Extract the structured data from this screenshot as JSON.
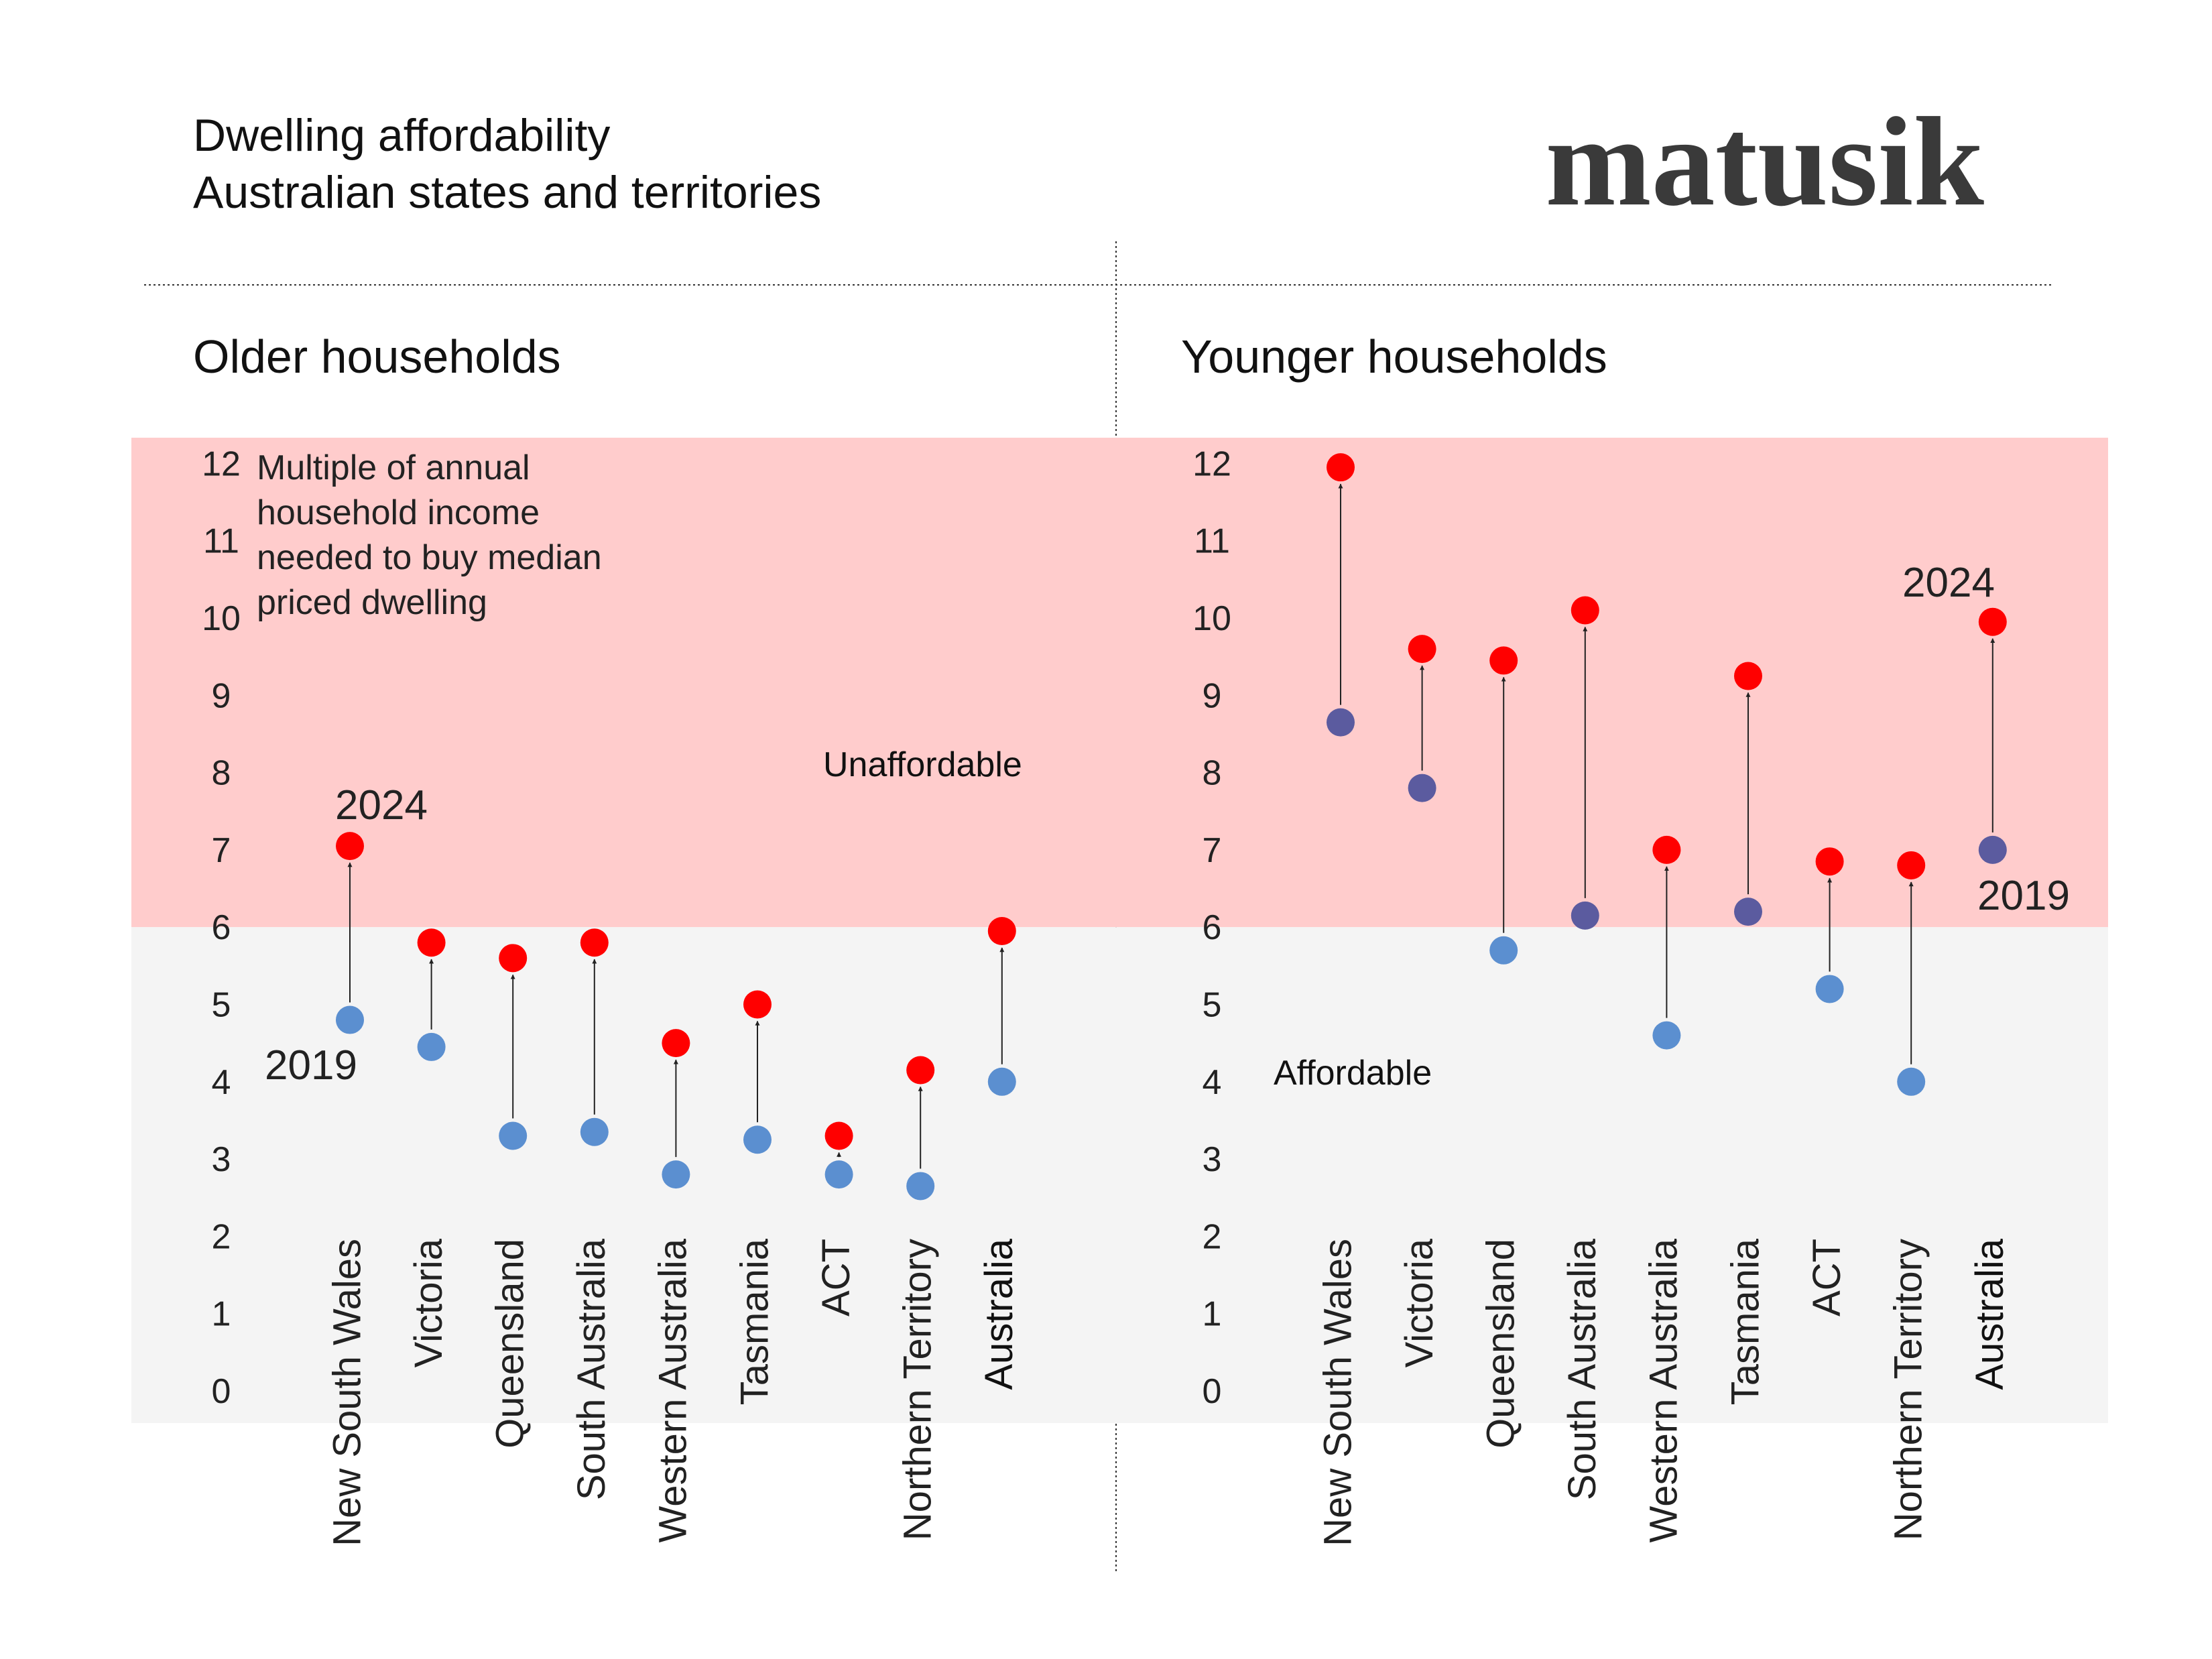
{
  "header": {
    "title_line1": "Dwelling affordability",
    "title_line2": "Australian states and territories",
    "logo": "matusik"
  },
  "colors": {
    "unaffordable_band": "#ffcccc",
    "affordable_band": "#f4f4f4",
    "value_2024": "#ff0000",
    "value_2019_older": "#5b8fd0",
    "value_2019_younger_high": "#5b5b9f",
    "arrow": "#222222"
  },
  "chart_data": [
    {
      "type": "dumbbell",
      "title": "Older households",
      "ylabel": "Multiple of annual household income needed to buy median priced dwelling",
      "note_lines": [
        "Multiple of annual",
        "household income",
        "needed to buy median",
        "priced dwelling"
      ],
      "ylim": [
        0,
        12
      ],
      "yticks": [
        "0",
        "1",
        "2",
        "3",
        "4",
        "5",
        "6",
        "7",
        "8",
        "9",
        "10",
        "11",
        "12"
      ],
      "threshold": 6,
      "zone_labels": {
        "above": "Unaffordable",
        "below": "Affordable"
      },
      "categories": [
        "New South Wales",
        "Victoria",
        "Queensland",
        "South Australia",
        "Western Australia",
        "Tasmania",
        "ACT",
        "Northern Territory",
        "Australia"
      ],
      "series": [
        {
          "name": "2019",
          "values": [
            4.8,
            4.45,
            3.3,
            3.35,
            2.8,
            3.25,
            2.8,
            2.65,
            4.0
          ]
        },
        {
          "name": "2024",
          "values": [
            7.05,
            5.8,
            5.6,
            5.8,
            4.5,
            5.0,
            3.3,
            4.15,
            5.95
          ]
        }
      ],
      "series_labels": {
        "2019": "2019",
        "2024": "2024"
      }
    },
    {
      "type": "dumbbell",
      "title": "Younger households",
      "ylim": [
        0,
        12
      ],
      "yticks": [
        "0",
        "1",
        "2",
        "3",
        "4",
        "5",
        "6",
        "7",
        "8",
        "9",
        "10",
        "11",
        "12"
      ],
      "threshold": 6,
      "zone_labels": {
        "above": "Unaffordable",
        "below": "Affordable"
      },
      "categories": [
        "New South Wales",
        "Victoria",
        "Queensland",
        "South Australia",
        "Western Australia",
        "Tasmania",
        "ACT",
        "Northern Territory",
        "Australia"
      ],
      "series": [
        {
          "name": "2019",
          "values": [
            8.65,
            7.8,
            5.7,
            6.15,
            4.6,
            6.2,
            5.2,
            4.0,
            7.0
          ]
        },
        {
          "name": "2024",
          "values": [
            11.95,
            9.6,
            9.45,
            10.1,
            7.0,
            9.25,
            6.85,
            6.8,
            9.95
          ]
        }
      ],
      "series_labels": {
        "2019": "2019",
        "2024": "2024"
      }
    }
  ]
}
